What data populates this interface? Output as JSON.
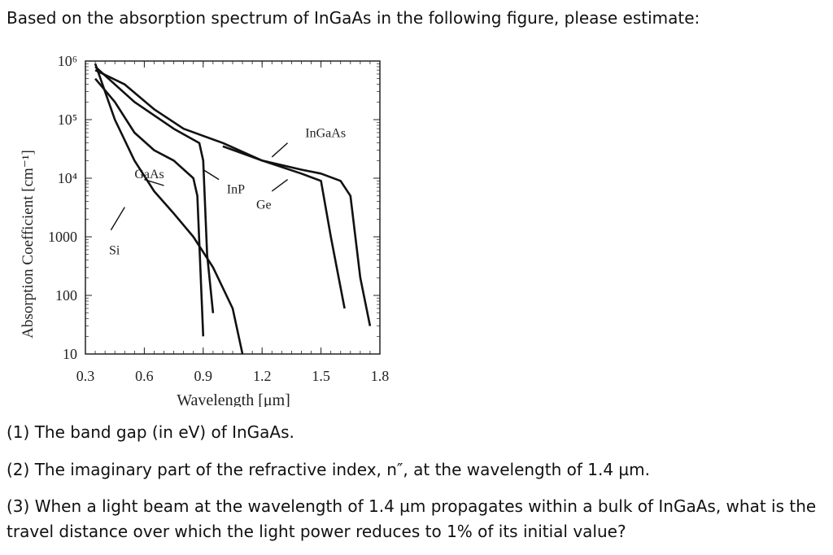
{
  "intro": "Based on the absorption spectrum of InGaAs in the following figure, please estimate:",
  "questions": [
    "(1) The band gap (in eV) of InGaAs.",
    "(2) The imaginary part of the refractive index, n″, at the wavelength of 1.4 µm.",
    "(3) When a light beam at the wavelength of 1.4 µm propagates within a bulk of InGaAs, what is the",
    "travel distance over which the light power reduces to 1% of its initial value?"
  ],
  "chart_data": {
    "type": "line",
    "xlabel": "Wavelength [μm]",
    "ylabel": "Absorption Coefficient [cm⁻¹]",
    "xlim": [
      0.3,
      1.8
    ],
    "ylim": [
      10,
      1000000
    ],
    "yscale": "log",
    "x_ticks": [
      0.3,
      0.6,
      0.9,
      1.2,
      1.5,
      1.8
    ],
    "x_tick_labels": [
      "0.3",
      "0.6",
      "0.9",
      "1.2",
      "1.5",
      "1.8"
    ],
    "y_ticks": [
      10,
      100,
      1000,
      10000,
      100000,
      1000000
    ],
    "y_tick_labels": [
      "10",
      "100",
      "1000",
      "10⁴",
      "10⁵",
      "10⁶"
    ],
    "series": [
      {
        "name": "Si",
        "x": [
          0.35,
          0.45,
          0.55,
          0.65,
          0.75,
          0.85,
          0.95,
          1.05,
          1.1
        ],
        "y": [
          900000,
          100000,
          20000,
          6000,
          2500,
          1000,
          300,
          60,
          10
        ]
      },
      {
        "name": "GaAs",
        "x": [
          0.35,
          0.45,
          0.55,
          0.65,
          0.75,
          0.85,
          0.87,
          0.9
        ],
        "y": [
          500000,
          200000,
          60000,
          30000,
          20000,
          10000,
          5000,
          20
        ]
      },
      {
        "name": "InP",
        "x": [
          0.35,
          0.55,
          0.75,
          0.88,
          0.9,
          0.92,
          0.95
        ],
        "y": [
          800000,
          200000,
          70000,
          40000,
          20000,
          500,
          50
        ]
      },
      {
        "name": "Ge",
        "x": [
          0.35,
          0.5,
          0.65,
          0.8,
          1.0,
          1.2,
          1.4,
          1.5,
          1.55,
          1.62
        ],
        "y": [
          700000,
          400000,
          150000,
          70000,
          40000,
          20000,
          12000,
          9000,
          1000,
          60
        ]
      },
      {
        "name": "InGaAs",
        "x": [
          1.0,
          1.2,
          1.4,
          1.5,
          1.6,
          1.65,
          1.7,
          1.75
        ],
        "y": [
          35000,
          20000,
          14000,
          12000,
          9000,
          5000,
          200,
          30
        ]
      }
    ],
    "annotations": [
      "GaAs",
      "InP",
      "Ge",
      "InGaAs",
      "Si"
    ],
    "grid": false
  }
}
